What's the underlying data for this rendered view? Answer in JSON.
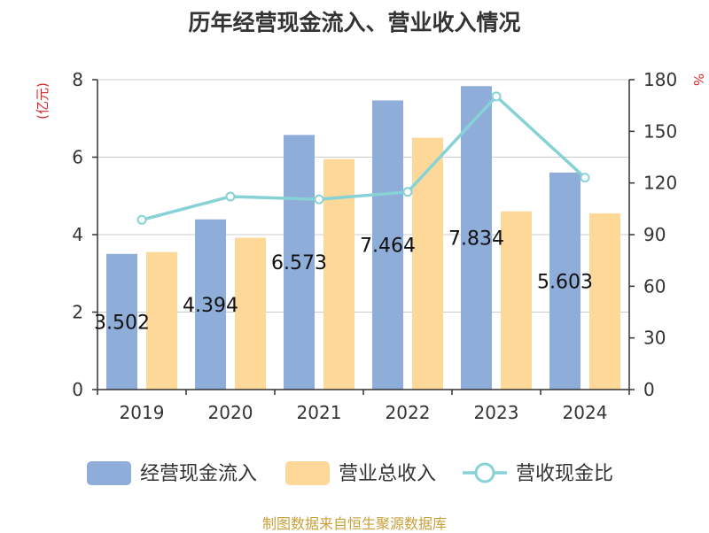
{
  "chart_data": {
    "type": "bar",
    "title": "历年经营现金流入、营业收入情况",
    "y_left_unit": "(亿元)",
    "y_right_unit": "%",
    "categories": [
      "2019",
      "2020",
      "2021",
      "2022",
      "2023",
      "2024"
    ],
    "ylim_left": [
      0,
      8
    ],
    "ylim_right": [
      0,
      180
    ],
    "y_left_ticks": [
      0,
      2,
      4,
      6,
      8
    ],
    "y_right_ticks": [
      0,
      30,
      60,
      90,
      120,
      150,
      180
    ],
    "grid": true,
    "legend_position": "bottom",
    "series": [
      {
        "name": "经营现金流入",
        "type": "bar",
        "axis": "left",
        "color": "#8eadd9",
        "values": [
          3.502,
          4.394,
          6.573,
          7.464,
          7.834,
          5.603
        ],
        "data_labels": [
          "3.502",
          "4.394",
          "6.573",
          "7.464",
          "7.834",
          "5.603"
        ]
      },
      {
        "name": "营业总收入",
        "type": "bar",
        "axis": "left",
        "color": "#fdd899",
        "values": [
          3.55,
          3.92,
          5.95,
          6.5,
          4.6,
          4.55
        ]
      },
      {
        "name": "营收现金比",
        "type": "line",
        "axis": "right",
        "color": "#86d2d6",
        "values": [
          98.6,
          112.1,
          110.5,
          114.8,
          170.3,
          123.1
        ]
      }
    ]
  },
  "footer": {
    "source": "制图数据来自恒生聚源数据库"
  }
}
